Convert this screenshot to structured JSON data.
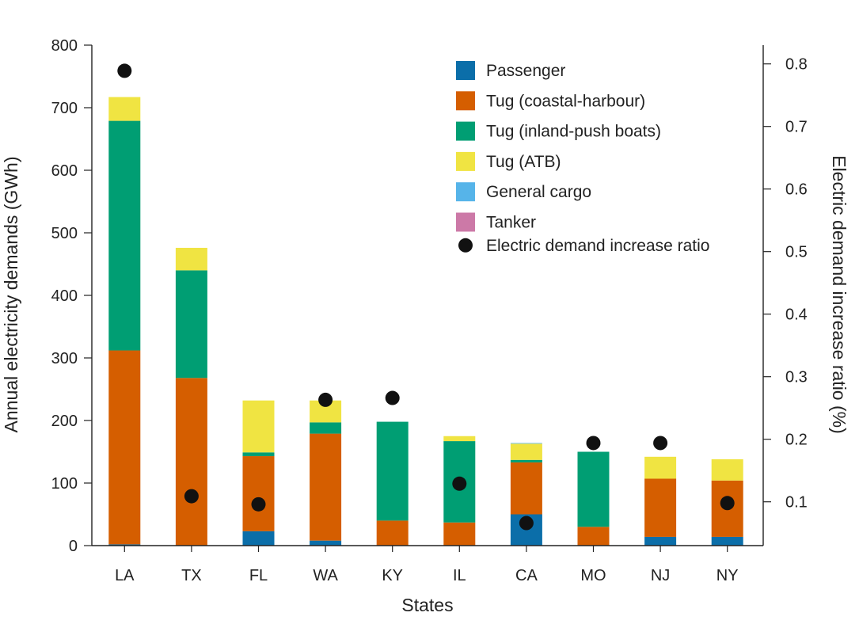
{
  "chart_data": {
    "type": "bar",
    "stacked": true,
    "xlabel": "States",
    "ylabel": "Annual electricity demands (GWh)",
    "ylabel_right": "Electric demand increase ratio (%)",
    "ylim": [
      0,
      800
    ],
    "ylim_right": [
      0.03,
      0.83
    ],
    "yticks": [
      "0",
      "100",
      "200",
      "300",
      "400",
      "500",
      "600",
      "700",
      "800"
    ],
    "yticks_right": [
      "0.1",
      "0.2",
      "0.3",
      "0.4",
      "0.5",
      "0.6",
      "0.7",
      "0.8"
    ],
    "categories": [
      "LA",
      "TX",
      "FL",
      "WA",
      "KY",
      "IL",
      "CA",
      "MO",
      "NJ",
      "NY"
    ],
    "legend_position": "top-right",
    "series": [
      {
        "name": "Passenger",
        "color": "#0b6ea9",
        "values": [
          2,
          0,
          23,
          8,
          0,
          0,
          50,
          0,
          14,
          14
        ]
      },
      {
        "name": "Tug (coastal-harbour)",
        "color": "#d55e00",
        "values": [
          310,
          268,
          120,
          171,
          40,
          37,
          83,
          30,
          93,
          90
        ]
      },
      {
        "name": "Tug (inland-push boats)",
        "color": "#009e73",
        "values": [
          367,
          172,
          6,
          18,
          158,
          130,
          4,
          120,
          0,
          0
        ]
      },
      {
        "name": "Tug (ATB)",
        "color": "#f0e442",
        "values": [
          38,
          36,
          83,
          35,
          0,
          8,
          26,
          0,
          35,
          34
        ]
      },
      {
        "name": "General cargo",
        "color": "#56b4e9",
        "values": [
          0,
          0,
          0,
          0,
          0,
          0,
          1,
          0,
          0,
          0
        ]
      },
      {
        "name": "Tanker",
        "color": "#cc79a7",
        "values": [
          0,
          0,
          0,
          0,
          0,
          0,
          0,
          0,
          0,
          0
        ]
      }
    ],
    "ratio_series": {
      "name": "Electric demand increase ratio",
      "color": "#111111",
      "axis": "right",
      "values": [
        0.789,
        0.109,
        0.096,
        0.263,
        0.266,
        0.129,
        0.066,
        0.194,
        0.194,
        0.098
      ]
    }
  }
}
